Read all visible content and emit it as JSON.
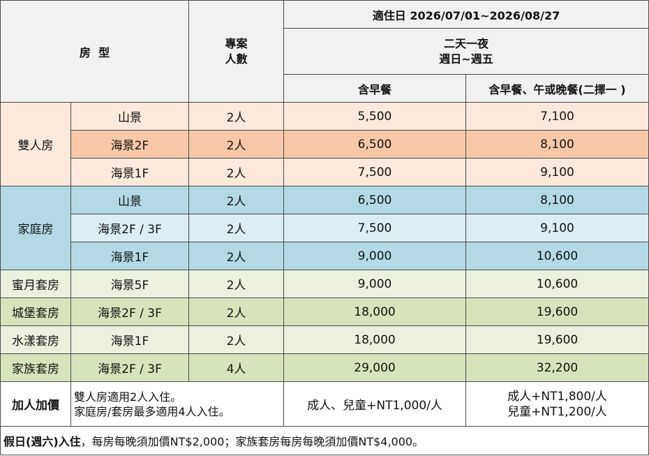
{
  "header": {
    "room_type": "房  型",
    "project_line1": "專案",
    "project_line2": "人數",
    "period": "適住日 2026/07/01~2026/08/27",
    "stay_line1": "二天一夜",
    "stay_line2": "週日~週五",
    "col_breakfast": "含早餐",
    "col_breakfast_meal": "含早餐、午或晚餐(二擇一 )"
  },
  "groups": {
    "double": "雙人房",
    "family": "家庭房",
    "honeymoon": "蜜月套房",
    "castle": "城堡套房",
    "water": "水漾套房",
    "clan": "家族套房"
  },
  "rows": [
    {
      "view": "山景",
      "people": "2人",
      "breakfast": "5,500",
      "meal": "7,100"
    },
    {
      "view": "海景2F",
      "people": "2人",
      "breakfast": "6,500",
      "meal": "8,100"
    },
    {
      "view": "海景1F",
      "people": "2人",
      "breakfast": "7,500",
      "meal": "9,100"
    },
    {
      "view": "山景",
      "people": "2人",
      "breakfast": "6,500",
      "meal": "8,100"
    },
    {
      "view": "海景2F / 3F",
      "people": "2人",
      "breakfast": "7,500",
      "meal": "9,100"
    },
    {
      "view": "海景1F",
      "people": "2人",
      "breakfast": "9,000",
      "meal": "10,600"
    },
    {
      "view": "海景5F",
      "people": "2人",
      "breakfast": "9,000",
      "meal": "10,600"
    },
    {
      "view": "海景2F / 3F",
      "people": "2人",
      "breakfast": "18,000",
      "meal": "19,600"
    },
    {
      "view": "海景1F",
      "people": "2人",
      "breakfast": "18,000",
      "meal": "19,600"
    },
    {
      "view": "海景2F / 3F",
      "people": "4人",
      "breakfast": "29,000",
      "meal": "32,200"
    }
  ],
  "extra": {
    "label": "加人加價",
    "note_line1": "雙人房適用2人入住。",
    "note_line2": "家庭房/套房最多適用4人入住。",
    "breakfast_price": "成人、兒童+NT1,000/人",
    "meal_adult": "成人+NT1,800/人",
    "meal_child": "兒童+NT1,200/人"
  },
  "footer": {
    "bold_part": "假日(週六)入住",
    "rest": "，每房每晚須加價NT$2,000；家族套房每房每晚須加價NT$4,000。"
  }
}
